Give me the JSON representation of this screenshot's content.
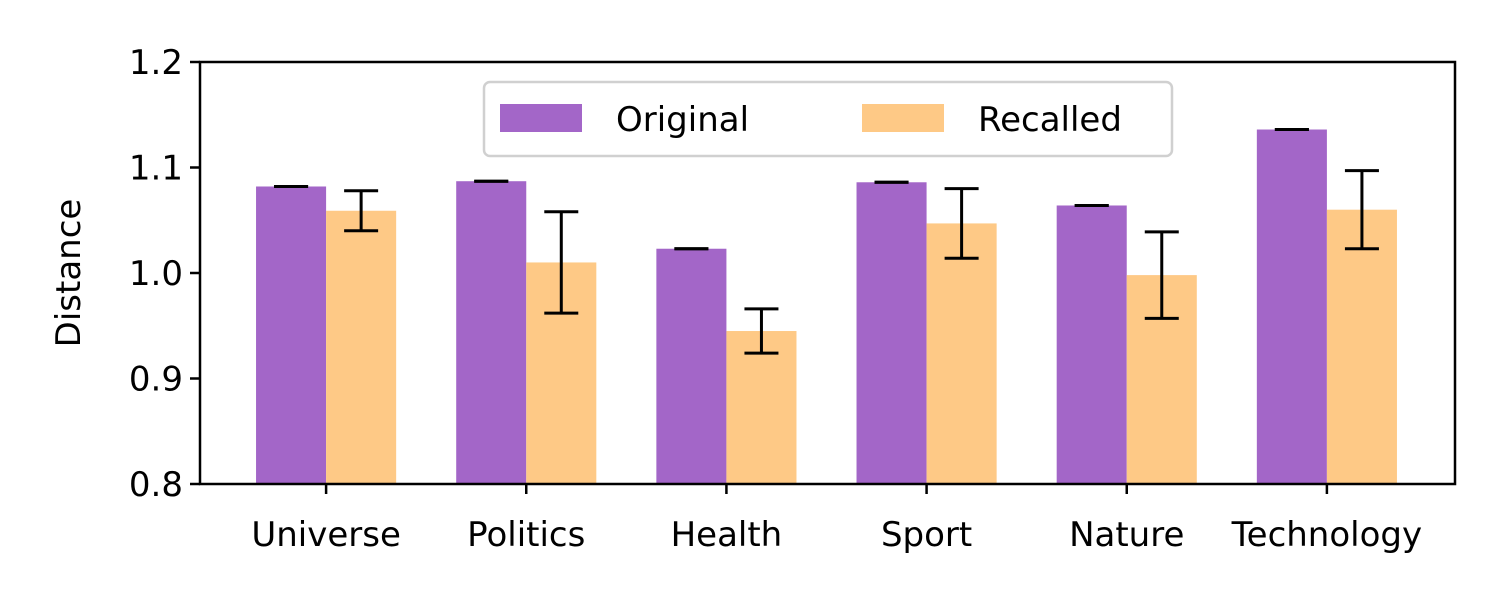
{
  "chart_data": {
    "type": "bar",
    "title": "",
    "xlabel": "",
    "ylabel": "Distance",
    "ylim": [
      0.8,
      1.2
    ],
    "yticks": [
      "0.8",
      "0.9",
      "1.0",
      "1.1",
      "1.2"
    ],
    "categories": [
      "Universe",
      "Politics",
      "Health",
      "Sport",
      "Nature",
      "Technology"
    ],
    "series": [
      {
        "name": "Original",
        "color": "#a366c8",
        "values": [
          1.082,
          1.087,
          1.023,
          1.086,
          1.064,
          1.136
        ],
        "errors": [
          0.0,
          0.0,
          0.0,
          0.0,
          0.0,
          0.0
        ]
      },
      {
        "name": "Recalled",
        "color": "#fec986",
        "values": [
          1.059,
          1.01,
          0.945,
          1.047,
          0.998,
          1.06
        ],
        "errors": [
          0.019,
          0.048,
          0.021,
          0.033,
          0.041,
          0.037
        ]
      }
    ],
    "legend_position": "top-center",
    "grid": false
  }
}
